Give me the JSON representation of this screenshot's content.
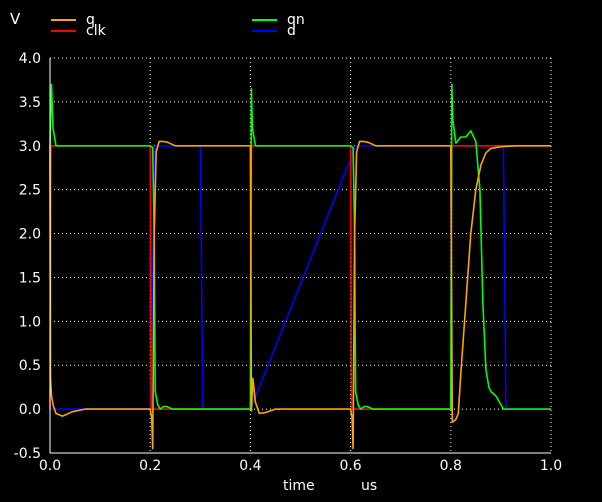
{
  "chart_data": {
    "type": "line",
    "ylabel": "V",
    "xlabel": "time",
    "xunit": "us",
    "xlim": [
      0.0,
      1.0
    ],
    "ylim": [
      -0.5,
      4.0
    ],
    "xticks": [
      "0.0",
      "0.2",
      "0.4",
      "0.6",
      "0.8",
      "1.0"
    ],
    "yticks": [
      "-0.5",
      "0.0",
      "0.5",
      "1.0",
      "1.5",
      "2.0",
      "2.5",
      "3.0",
      "3.5",
      "4.0"
    ],
    "grid": true,
    "legend": [
      {
        "name": "q",
        "color": "#ffa500"
      },
      {
        "name": "clk",
        "color": "#ff0000"
      },
      {
        "name": "qn",
        "color": "#00ff00"
      },
      {
        "name": "d",
        "color": "#0000ff"
      }
    ],
    "series": [
      {
        "name": "d",
        "color": "#0000ff",
        "x": [
          0.0,
          0.2,
          0.21,
          0.3,
          0.305,
          0.4,
          0.61,
          0.905,
          0.91,
          1.0
        ],
        "y": [
          0.0,
          0.0,
          3.0,
          3.0,
          0.0,
          0.0,
          3.0,
          3.0,
          0.0,
          0.0
        ]
      },
      {
        "name": "clk",
        "color": "#ff0000",
        "x": [
          0.0,
          0.001,
          0.002,
          0.2,
          0.201,
          0.202,
          0.4,
          0.401,
          0.402,
          0.6,
          0.601,
          0.602,
          0.8,
          0.801,
          0.802,
          1.0
        ],
        "y": [
          0.0,
          1.5,
          3.0,
          3.0,
          1.5,
          0.0,
          0.0,
          1.5,
          3.0,
          3.0,
          1.5,
          0.0,
          0.0,
          1.5,
          3.0,
          3.0
        ]
      },
      {
        "name": "qn",
        "color": "#00ff00",
        "x": [
          0.0,
          0.003,
          0.006,
          0.012,
          0.2,
          0.205,
          0.208,
          0.21,
          0.215,
          0.22,
          0.227,
          0.233,
          0.245,
          0.26,
          0.28,
          0.4,
          0.402,
          0.404,
          0.41,
          0.6,
          0.605,
          0.608,
          0.61,
          0.615,
          0.62,
          0.627,
          0.633,
          0.645,
          0.66,
          0.68,
          0.8,
          0.802,
          0.804,
          0.81,
          0.82,
          0.83,
          0.84,
          0.85,
          0.858,
          0.864,
          0.87,
          0.876,
          0.88,
          0.89,
          0.905,
          0.91,
          1.0
        ],
        "y": [
          3.0,
          3.7,
          3.2,
          3.0,
          3.0,
          2.98,
          2.0,
          0.2,
          0.05,
          0.0,
          0.03,
          0.03,
          0.0,
          0.0,
          0.0,
          0.0,
          3.65,
          3.2,
          3.0,
          3.0,
          2.98,
          2.0,
          0.2,
          0.05,
          0.0,
          0.03,
          0.03,
          0.0,
          0.0,
          0.0,
          0.0,
          3.7,
          3.3,
          3.03,
          3.1,
          3.1,
          3.17,
          3.05,
          2.5,
          1.2,
          0.45,
          0.25,
          0.2,
          0.15,
          0.0,
          0.0,
          0.0
        ]
      },
      {
        "name": "q",
        "color": "#ffa500",
        "x": [
          0.0,
          0.001,
          0.003,
          0.006,
          0.012,
          0.025,
          0.045,
          0.07,
          0.09,
          0.2,
          0.203,
          0.205,
          0.208,
          0.212,
          0.218,
          0.225,
          0.235,
          0.25,
          0.27,
          0.3,
          0.4,
          0.402,
          0.405,
          0.41,
          0.418,
          0.43,
          0.45,
          0.48,
          0.6,
          0.603,
          0.605,
          0.608,
          0.612,
          0.618,
          0.625,
          0.635,
          0.65,
          0.67,
          0.7,
          0.8,
          0.803,
          0.81,
          0.815,
          0.82,
          0.83,
          0.84,
          0.85,
          0.86,
          0.87,
          0.88,
          0.9,
          0.93,
          0.97,
          1.0
        ],
        "y": [
          3.0,
          0.35,
          0.15,
          0.05,
          -0.05,
          -0.08,
          -0.03,
          0.0,
          0.0,
          0.0,
          -0.1,
          -0.45,
          2.0,
          2.93,
          3.05,
          3.05,
          3.04,
          3.0,
          3.0,
          3.0,
          3.0,
          -0.02,
          0.35,
          0.08,
          -0.05,
          -0.04,
          0.0,
          0.0,
          0.0,
          -0.1,
          -0.45,
          2.0,
          2.93,
          3.05,
          3.05,
          3.04,
          3.0,
          3.0,
          3.0,
          3.0,
          -0.15,
          -0.12,
          -0.05,
          0.4,
          1.2,
          2.0,
          2.5,
          2.78,
          2.92,
          2.97,
          2.99,
          3.0,
          3.0,
          3.0
        ]
      }
    ]
  }
}
